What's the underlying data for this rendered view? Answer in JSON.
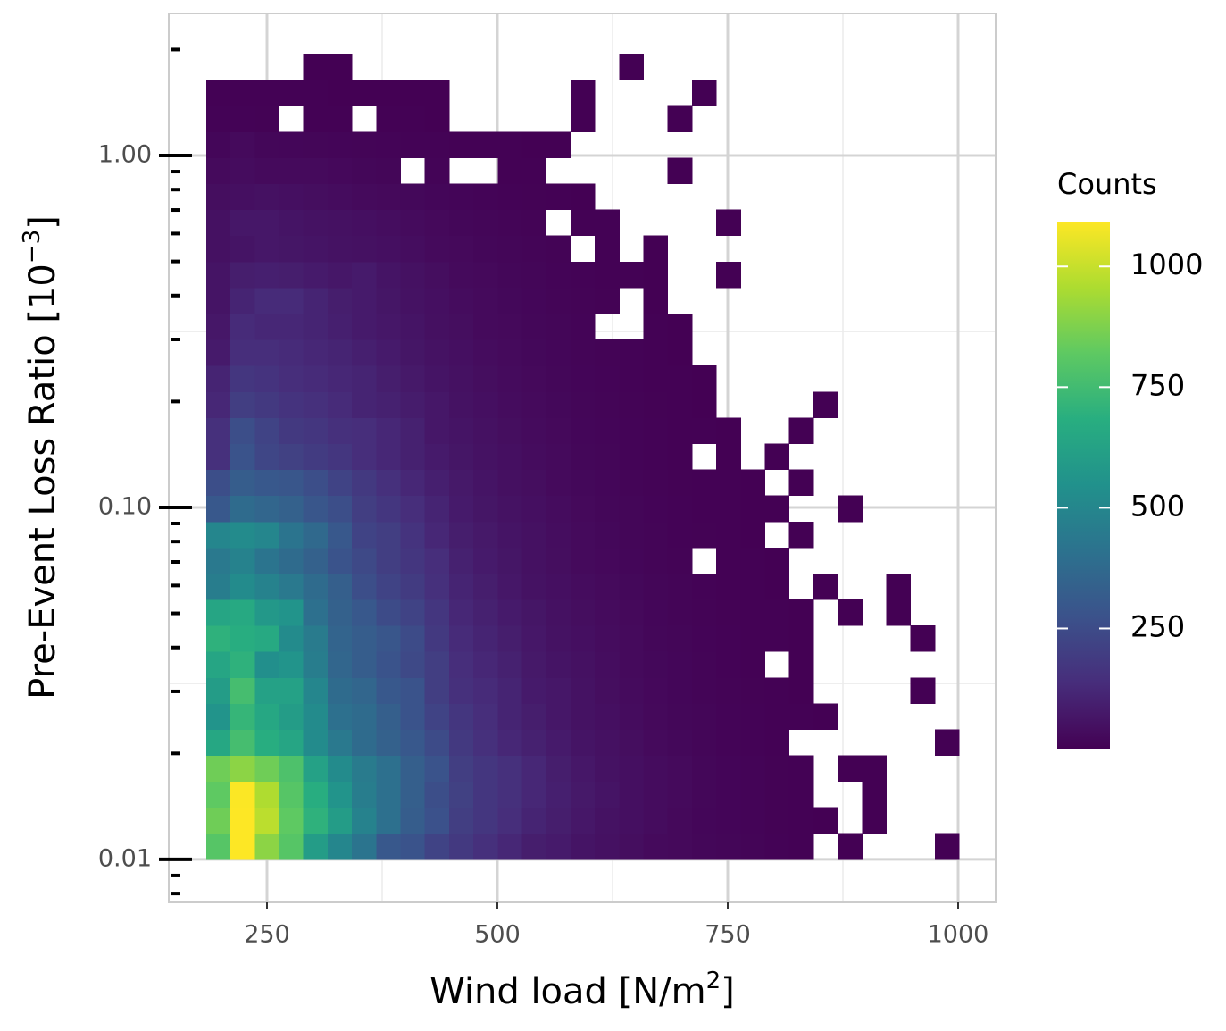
{
  "chart_data": {
    "type": "bin2d",
    "x_label": {
      "text": "Wind load [N/m",
      "sup": "2",
      "after": "]"
    },
    "y_label": {
      "text": "Pre-Event Loss Ratio [10",
      "sup": "−3",
      "after": "]"
    },
    "log_y": true,
    "grid": true,
    "xlim": [
      143.4,
      1040.7
    ],
    "ylim": [
      0.00755,
      2.533
    ],
    "xticks": [
      250,
      500,
      750,
      1000
    ],
    "x_minor_ticks": [
      375,
      625,
      875
    ],
    "yticks": [
      {
        "value": 0.01,
        "label": "0.01"
      },
      {
        "value": 0.1,
        "label": "0.10"
      },
      {
        "value": 1,
        "label": "1.00"
      }
    ],
    "y_minor_ticks": [
      0.0316,
      0.316
    ],
    "log_ticks": [
      0.008,
      0.009,
      0.01,
      0.02,
      0.03,
      0.04,
      0.05,
      0.06,
      0.07,
      0.08,
      0.09,
      0.1,
      0.2,
      0.3,
      0.4,
      0.5,
      0.6,
      0.7,
      0.8,
      0.9,
      1,
      2
    ],
    "xbins": [
      184,
      210.4,
      236.7,
      263.1,
      289.4,
      315.8,
      342.2,
      368.5,
      394.9,
      421.2,
      447.6,
      474,
      500.3,
      526.7,
      553,
      579.4,
      605.8,
      632.1,
      658.5,
      684.8,
      711.2,
      737.6,
      763.9,
      790.3,
      816.6,
      843,
      869.4,
      895.7,
      922.1,
      948.4,
      974.8,
      1001.2
    ],
    "ybins": [
      0.01,
      0.01186,
      0.01405,
      0.01665,
      0.01974,
      0.02339,
      0.02773,
      0.03287,
      0.03896,
      0.04618,
      0.05474,
      0.06489,
      0.07692,
      0.09118,
      0.1081,
      0.1281,
      0.1519,
      0.18,
      0.2134,
      0.2529,
      0.2998,
      0.3554,
      0.4213,
      0.4994,
      0.592,
      0.7015,
      0.8315,
      0.9856,
      1.168,
      1.385,
      1.641,
      1.945
    ],
    "values": [
      [
        800,
        1093,
        900,
        800,
        600,
        500,
        420,
        300,
        280,
        220,
        180,
        150,
        120,
        90,
        80,
        60,
        50,
        40,
        30,
        25,
        20,
        15,
        12,
        8,
        5,
        null,
        1,
        null,
        null,
        null,
        1
      ],
      [
        850,
        1093,
        980,
        820,
        700,
        600,
        480,
        400,
        320,
        270,
        200,
        170,
        140,
        110,
        90,
        70,
        55,
        45,
        35,
        25,
        18,
        14,
        10,
        6,
        4,
        2,
        null,
        1,
        null,
        null,
        null
      ],
      [
        820,
        1090,
        960,
        800,
        680,
        560,
        460,
        400,
        330,
        260,
        210,
        170,
        150,
        120,
        95,
        75,
        60,
        45,
        35,
        28,
        20,
        14,
        10,
        6,
        3,
        null,
        null,
        1,
        null,
        null,
        null
      ],
      [
        850,
        900,
        850,
        780,
        620,
        520,
        450,
        400,
        330,
        280,
        200,
        170,
        150,
        120,
        90,
        70,
        55,
        45,
        35,
        28,
        20,
        14,
        10,
        6,
        3,
        null,
        1,
        1,
        null,
        null,
        null
      ],
      [
        650,
        760,
        680,
        640,
        520,
        440,
        380,
        340,
        300,
        250,
        180,
        150,
        120,
        100,
        80,
        60,
        50,
        40,
        30,
        22,
        16,
        10,
        7,
        4,
        null,
        null,
        null,
        null,
        null,
        null,
        1
      ],
      [
        560,
        720,
        650,
        600,
        520,
        400,
        380,
        330,
        280,
        220,
        170,
        140,
        110,
        90,
        70,
        55,
        45,
        35,
        26,
        20,
        15,
        10,
        7,
        5,
        3,
        1,
        null,
        null,
        null,
        null,
        null
      ],
      [
        600,
        760,
        620,
        620,
        500,
        380,
        360,
        300,
        280,
        200,
        150,
        130,
        110,
        80,
        70,
        55,
        40,
        32,
        24,
        18,
        13,
        9,
        6,
        4,
        2,
        null,
        null,
        null,
        null,
        1,
        null
      ],
      [
        640,
        700,
        540,
        560,
        460,
        360,
        320,
        280,
        240,
        200,
        140,
        120,
        100,
        75,
        60,
        50,
        38,
        30,
        22,
        17,
        12,
        8,
        5,
        null,
        2,
        null,
        null,
        null,
        null,
        null,
        null
      ],
      [
        700,
        680,
        660,
        520,
        450,
        350,
        320,
        290,
        250,
        180,
        130,
        110,
        90,
        70,
        55,
        45,
        35,
        28,
        20,
        15,
        11,
        7,
        5,
        3,
        2,
        null,
        null,
        null,
        null,
        1,
        null
      ],
      [
        640,
        660,
        580,
        560,
        400,
        340,
        300,
        250,
        220,
        170,
        120,
        100,
        80,
        65,
        50,
        40,
        32,
        25,
        18,
        13,
        9,
        6,
        4,
        3,
        1,
        null,
        1,
        null,
        1,
        null,
        null
      ],
      [
        460,
        520,
        480,
        440,
        380,
        330,
        260,
        220,
        190,
        150,
        110,
        90,
        70,
        55,
        45,
        35,
        28,
        22,
        16,
        12,
        8,
        5,
        3,
        2,
        null,
        1,
        null,
        null,
        1,
        null,
        null
      ],
      [
        440,
        480,
        420,
        380,
        340,
        280,
        240,
        200,
        170,
        140,
        100,
        80,
        65,
        50,
        40,
        30,
        24,
        18,
        13,
        9,
        null,
        4,
        3,
        1,
        null,
        null,
        null,
        null,
        null,
        null,
        null
      ],
      [
        500,
        520,
        500,
        420,
        370,
        300,
        220,
        200,
        160,
        120,
        90,
        75,
        60,
        50,
        38,
        28,
        22,
        16,
        12,
        8,
        6,
        4,
        2,
        null,
        1,
        null,
        null,
        null,
        null,
        null,
        null
      ],
      [
        300,
        380,
        360,
        340,
        290,
        260,
        200,
        170,
        140,
        110,
        80,
        65,
        55,
        45,
        35,
        25,
        20,
        15,
        11,
        7,
        5,
        3,
        2,
        1,
        null,
        null,
        1,
        null,
        null,
        null,
        null
      ],
      [
        260,
        320,
        300,
        290,
        260,
        220,
        180,
        150,
        120,
        95,
        75,
        60,
        48,
        40,
        30,
        22,
        17,
        13,
        9,
        6,
        4,
        3,
        1,
        null,
        1,
        null,
        null,
        null,
        null,
        null,
        null
      ],
      [
        150,
        280,
        230,
        210,
        190,
        170,
        140,
        120,
        100,
        80,
        65,
        55,
        45,
        35,
        28,
        20,
        15,
        11,
        8,
        5,
        null,
        2,
        null,
        1,
        null,
        null,
        null,
        null,
        null,
        null,
        null
      ],
      [
        150,
        260,
        220,
        180,
        170,
        150,
        140,
        120,
        100,
        70,
        60,
        50,
        40,
        32,
        25,
        18,
        14,
        10,
        7,
        5,
        3,
        2,
        null,
        null,
        1,
        null,
        null,
        null,
        null,
        null,
        null
      ],
      [
        120,
        200,
        180,
        160,
        150,
        130,
        110,
        100,
        85,
        70,
        55,
        45,
        35,
        28,
        22,
        16,
        12,
        9,
        6,
        4,
        2,
        null,
        null,
        null,
        null,
        1,
        null,
        null,
        null,
        null,
        null
      ],
      [
        110,
        170,
        160,
        140,
        130,
        120,
        110,
        90,
        75,
        60,
        50,
        40,
        32,
        25,
        20,
        14,
        10,
        8,
        5,
        3,
        2,
        null,
        null,
        null,
        null,
        null,
        null,
        null,
        null,
        null,
        null
      ],
      [
        80,
        140,
        140,
        130,
        120,
        110,
        95,
        80,
        65,
        55,
        45,
        35,
        28,
        22,
        17,
        12,
        9,
        7,
        4,
        2,
        null,
        null,
        null,
        null,
        null,
        null,
        null,
        null,
        null,
        null,
        null
      ],
      [
        70,
        130,
        120,
        120,
        110,
        95,
        80,
        70,
        60,
        48,
        40,
        30,
        25,
        20,
        15,
        10,
        null,
        null,
        3,
        2,
        null,
        null,
        null,
        null,
        null,
        null,
        null,
        null,
        null,
        null,
        null
      ],
      [
        60,
        110,
        130,
        130,
        110,
        90,
        80,
        65,
        55,
        45,
        35,
        28,
        22,
        17,
        12,
        9,
        6,
        null,
        2,
        null,
        null,
        null,
        null,
        null,
        null,
        null,
        null,
        null,
        null,
        null,
        null
      ],
      [
        60,
        90,
        95,
        90,
        80,
        70,
        80,
        60,
        50,
        40,
        30,
        25,
        20,
        15,
        11,
        8,
        5,
        3,
        2,
        null,
        null,
        1,
        null,
        null,
        null,
        null,
        null,
        null,
        null,
        null,
        null
      ],
      [
        50,
        60,
        70,
        65,
        60,
        55,
        50,
        45,
        38,
        30,
        25,
        20,
        16,
        12,
        9,
        null,
        4,
        null,
        1,
        null,
        null,
        null,
        null,
        null,
        null,
        null,
        null,
        null,
        null,
        null,
        null
      ],
      [
        50,
        70,
        70,
        60,
        55,
        50,
        45,
        38,
        32,
        26,
        20,
        16,
        12,
        9,
        null,
        5,
        3,
        null,
        null,
        null,
        null,
        1,
        null,
        null,
        null,
        null,
        null,
        null,
        null,
        null,
        null
      ],
      [
        40,
        45,
        50,
        45,
        40,
        35,
        30,
        26,
        22,
        18,
        14,
        11,
        8,
        6,
        4,
        2,
        null,
        null,
        null,
        null,
        null,
        null,
        null,
        null,
        null,
        null,
        null,
        null,
        null,
        null,
        null
      ],
      [
        30,
        35,
        30,
        30,
        28,
        24,
        20,
        16,
        null,
        10,
        null,
        null,
        5,
        3,
        null,
        null,
        null,
        null,
        null,
        1,
        null,
        null,
        null,
        null,
        null,
        null,
        null,
        null,
        null,
        null,
        null
      ],
      [
        18,
        30,
        20,
        18,
        16,
        14,
        12,
        10,
        8,
        7,
        5,
        4,
        3,
        2,
        1,
        null,
        null,
        null,
        null,
        null,
        null,
        null,
        null,
        null,
        null,
        null,
        null,
        null,
        null,
        null,
        null
      ],
      [
        8,
        8,
        6,
        null,
        5,
        4,
        null,
        3,
        3,
        2,
        null,
        null,
        null,
        null,
        null,
        1,
        null,
        null,
        null,
        1,
        null,
        null,
        null,
        null,
        null,
        null,
        null,
        null,
        null,
        null,
        null
      ],
      [
        3,
        3,
        3,
        3,
        3,
        2,
        2,
        2,
        2,
        1,
        null,
        null,
        null,
        null,
        null,
        1,
        null,
        null,
        null,
        null,
        1,
        null,
        null,
        null,
        null,
        null,
        null,
        null,
        null,
        null,
        null
      ],
      [
        null,
        null,
        null,
        null,
        1,
        1,
        null,
        null,
        null,
        null,
        null,
        null,
        null,
        null,
        null,
        null,
        null,
        1,
        null,
        null,
        null,
        null,
        null,
        null,
        null,
        null,
        null,
        null,
        null,
        null,
        null
      ]
    ],
    "colormap": [
      "#440154",
      "#472d7b",
      "#3b528b",
      "#2c728e",
      "#21918c",
      "#28ae80",
      "#5ec962",
      "#addc30",
      "#fde725"
    ],
    "legend": {
      "title": "Counts",
      "lim": [
        1,
        1093
      ],
      "ticks": [
        250,
        500,
        750,
        1000
      ]
    }
  }
}
